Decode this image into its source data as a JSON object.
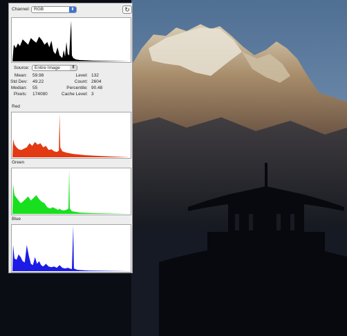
{
  "panel": {
    "channel_label": "Channel:",
    "channel_value": "RGB",
    "source_label": "Source:",
    "source_value": "Entire Image",
    "refresh_icon": "refresh-icon",
    "warning_icon": "cache-warning-icon"
  },
  "stats": {
    "mean_label": "Mean:",
    "mean": "59.98",
    "stddev_label": "Std Dev:",
    "stddev": "49.22",
    "median_label": "Median:",
    "median": "55",
    "pixels_label": "Pixels:",
    "pixels": "174080",
    "level_label": "Level:",
    "level": "132",
    "count_label": "Count:",
    "count": "2604",
    "percentile_label": "Percentile:",
    "percentile": "90.48",
    "cache_label": "Cache Level:",
    "cache": "3"
  },
  "channels": {
    "red_title": "Red",
    "green_title": "Green",
    "blue_title": "Blue"
  },
  "colors": {
    "rgb": "#000000",
    "red": "#e23a12",
    "green": "#19e01e",
    "blue": "#1c1ce6"
  }
}
